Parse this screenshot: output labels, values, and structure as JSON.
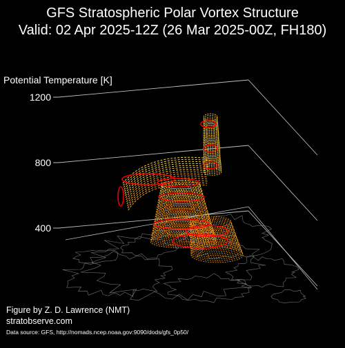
{
  "title": {
    "line1": "GFS Stratospheric Polar Vortex Structure",
    "line2": "Valid: 02 Apr 2025-12Z  (26 Mar 2025-00Z, FH180)"
  },
  "footer": {
    "credit": "Figure by Z. D. Lawrence (NMT)",
    "website": "stratobserve.com",
    "data_source": "Data source: GFS, http://nomads.ncep.noaa.gov:9090/dods/gfs_0p50/"
  },
  "colors": {
    "background": "#000000",
    "text": "#ffffff",
    "axis": "#bfbfbf",
    "coastline": "#9a9a9a",
    "vortex_outer": "#ffd23c",
    "vortex_mid": "#ffa51e",
    "vortex_inner": "#ff3214",
    "vortex_edge": "#ff0000"
  },
  "chart_data": {
    "type": "3d-isosurface",
    "zlabel": "Potential Temperature [K]",
    "z_ticks": [
      400,
      800,
      1200
    ],
    "zlim": [
      350,
      1200
    ],
    "grid": true,
    "legend": "none",
    "basemap": "Northern Hemisphere polar stereographic coastlines",
    "surfaces": [
      {
        "name": "vortex_edge_rings",
        "color": "#ff0000",
        "levels_K": [
          420,
          470,
          540,
          650,
          750,
          820,
          880,
          1100,
          1150,
          1200
        ]
      }
    ]
  }
}
